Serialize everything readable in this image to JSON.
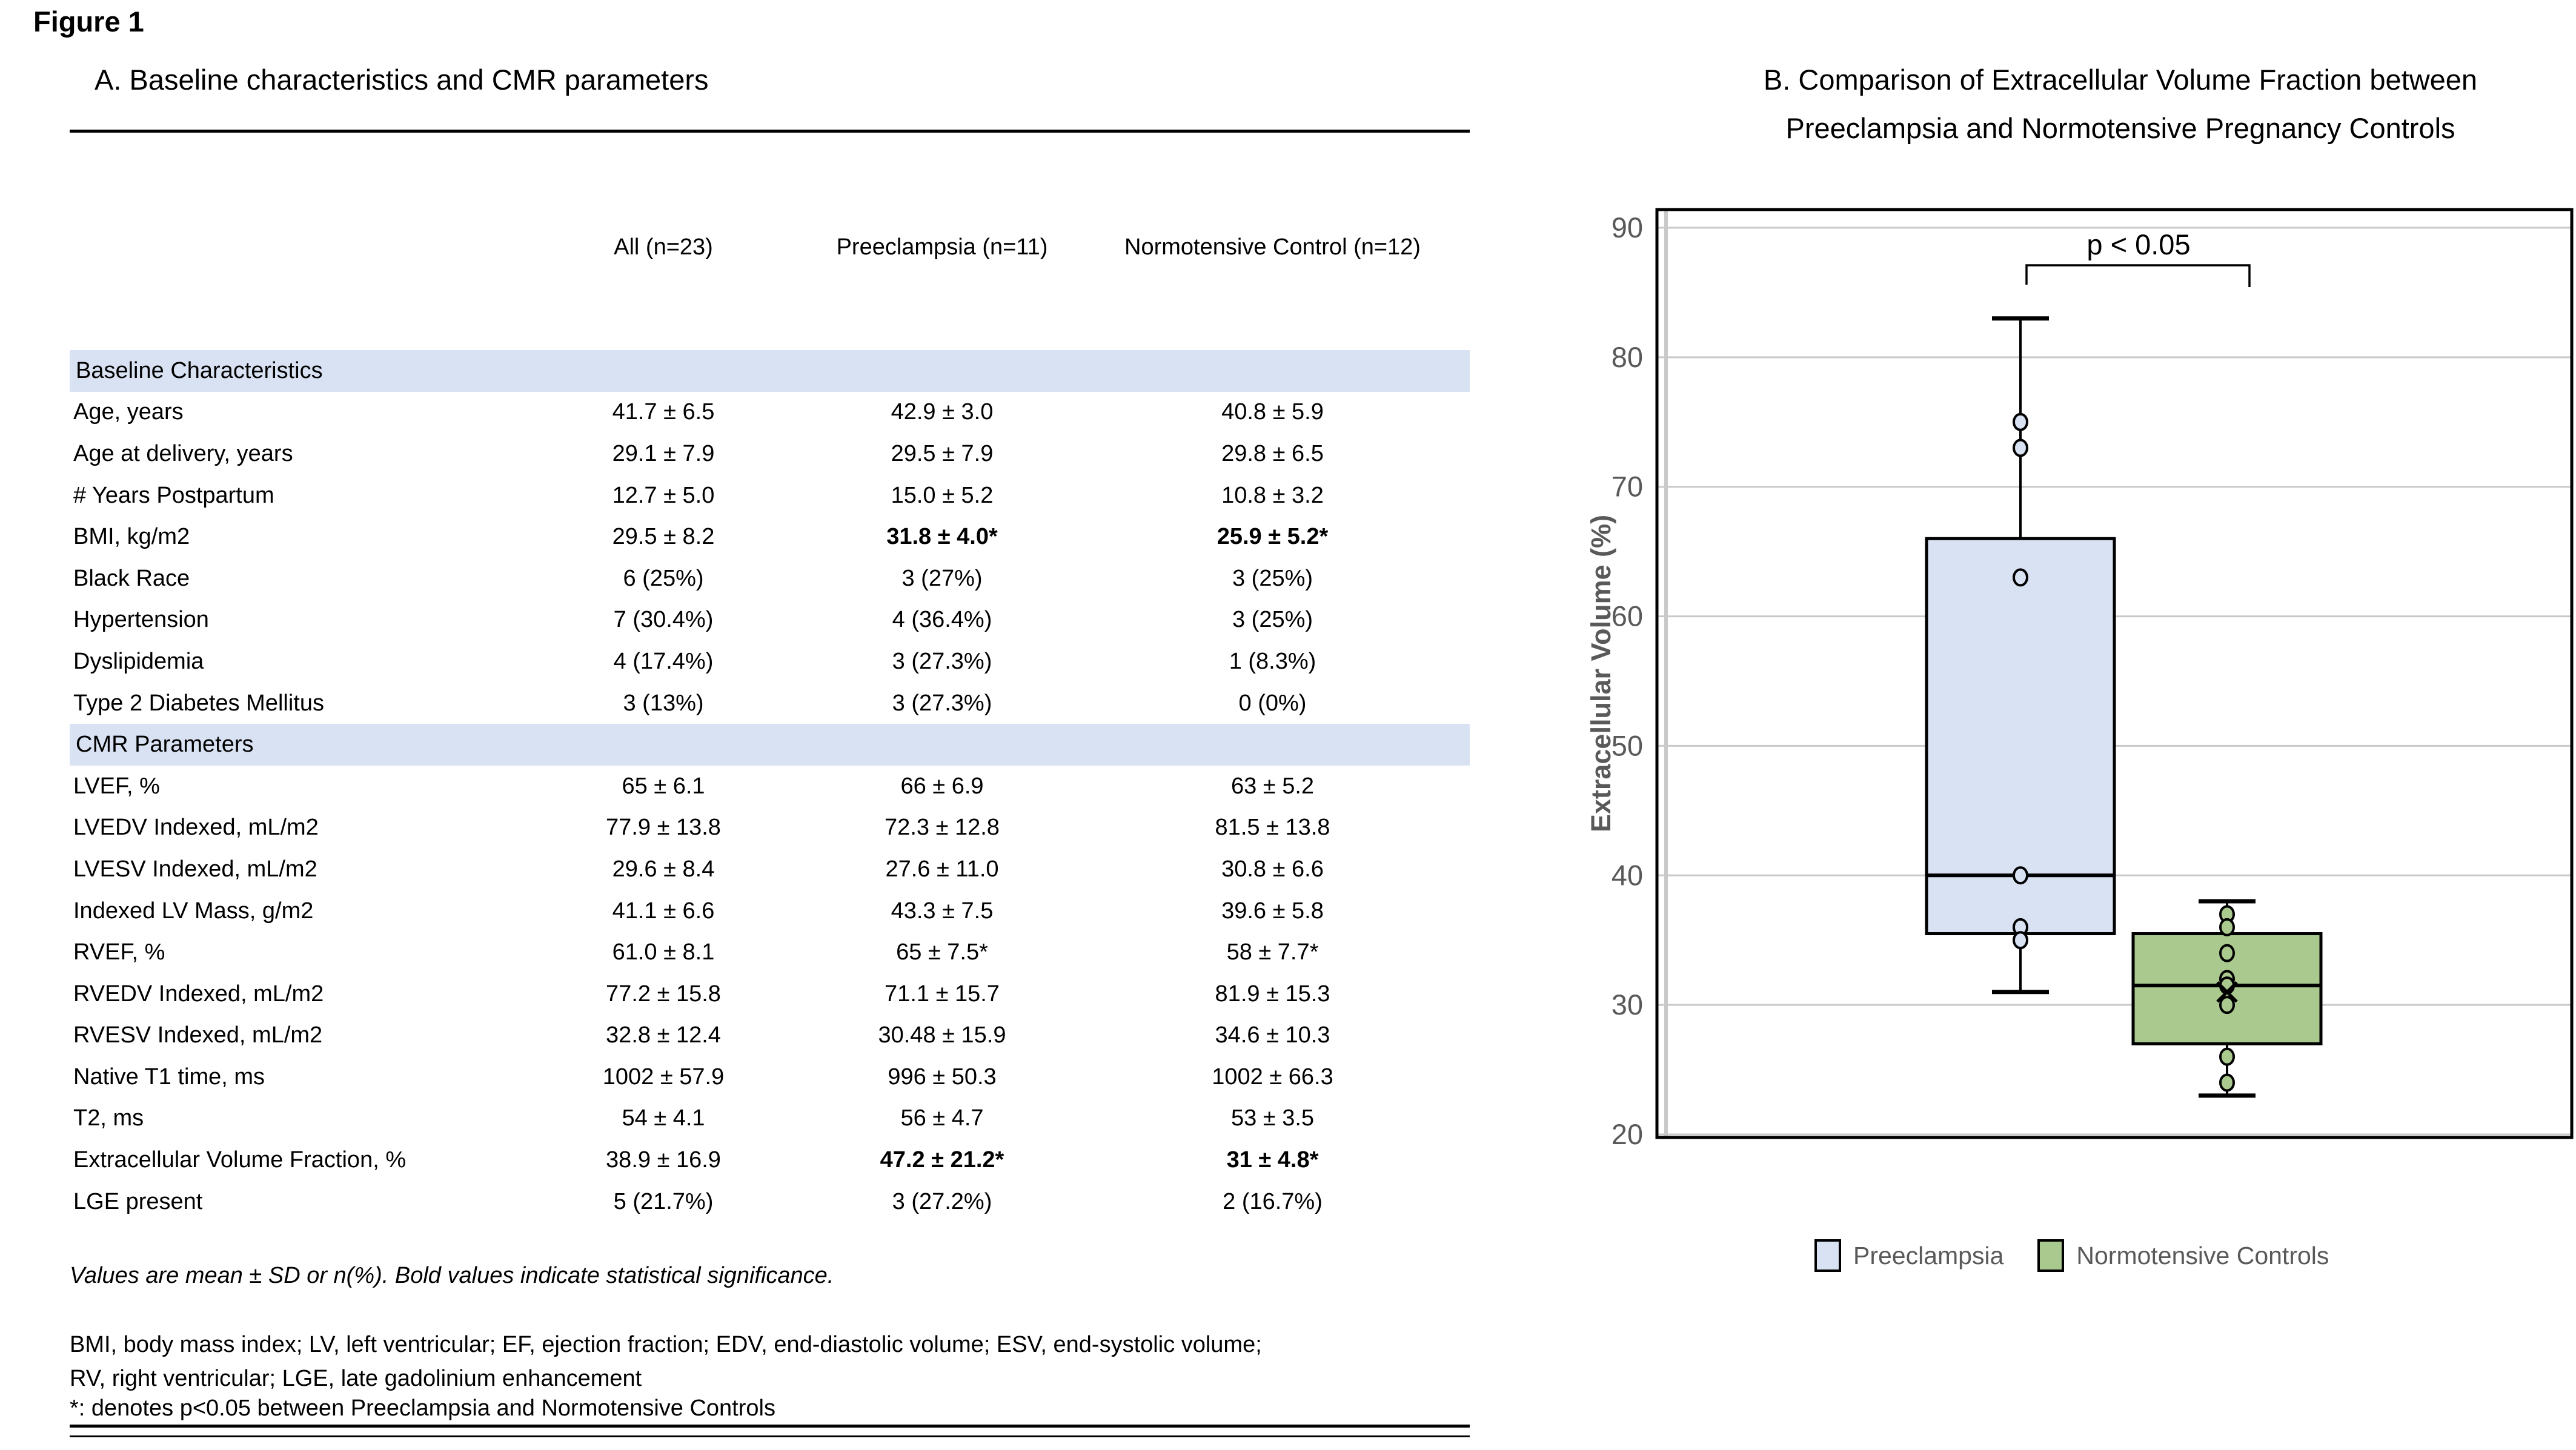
{
  "figure_label": "Figure 1",
  "panel_a": {
    "title": "A. Baseline characteristics and CMR parameters",
    "columns": [
      "",
      "All (n=23)",
      "Preeclampsia (n=11)",
      "Normotensive Control (n=12)"
    ],
    "rows": [
      {
        "section": true,
        "label": "Baseline Characteristics"
      },
      {
        "label": "Age, years",
        "values": [
          "41.7 ± 6.5",
          "42.9 ± 3.0",
          "40.8 ± 5.9"
        ],
        "bold": [
          false,
          false,
          false
        ]
      },
      {
        "label": "Age at delivery, years",
        "values": [
          "29.1 ± 7.9",
          "29.5 ± 7.9",
          "29.8 ± 6.5"
        ],
        "bold": [
          false,
          false,
          false
        ]
      },
      {
        "label": "# Years Postpartum",
        "values": [
          "12.7 ± 5.0",
          "15.0 ± 5.2",
          "10.8 ± 3.2"
        ],
        "bold": [
          false,
          false,
          false
        ]
      },
      {
        "label": "BMI, kg/m2",
        "values": [
          "29.5 ± 8.2",
          "31.8 ± 4.0*",
          "25.9 ± 5.2*"
        ],
        "bold": [
          false,
          true,
          true
        ]
      },
      {
        "label": "Black Race",
        "values": [
          "6 (25%)",
          "3 (27%)",
          "3 (25%)"
        ],
        "bold": [
          false,
          false,
          false
        ]
      },
      {
        "label": "Hypertension",
        "values": [
          "7 (30.4%)",
          "4 (36.4%)",
          "3 (25%)"
        ],
        "bold": [
          false,
          false,
          false
        ]
      },
      {
        "label": "Dyslipidemia",
        "values": [
          "4 (17.4%)",
          "3 (27.3%)",
          "1 (8.3%)"
        ],
        "bold": [
          false,
          false,
          false
        ]
      },
      {
        "label": "Type 2 Diabetes Mellitus",
        "values": [
          "3 (13%)",
          "3 (27.3%)",
          "0 (0%)"
        ],
        "bold": [
          false,
          false,
          false
        ]
      },
      {
        "section": true,
        "label": "CMR Parameters"
      },
      {
        "label": "LVEF, %",
        "values": [
          "65 ± 6.1",
          "66 ± 6.9",
          "63 ± 5.2"
        ],
        "bold": [
          false,
          false,
          false
        ]
      },
      {
        "label": "LVEDV Indexed, mL/m2",
        "values": [
          "77.9 ± 13.8",
          "72.3 ± 12.8",
          "81.5 ± 13.8"
        ],
        "bold": [
          false,
          false,
          false
        ]
      },
      {
        "label": "LVESV Indexed, mL/m2",
        "values": [
          "29.6 ± 8.4",
          "27.6 ± 11.0",
          "30.8 ± 6.6"
        ],
        "bold": [
          false,
          false,
          false
        ]
      },
      {
        "label": "Indexed LV Mass, g/m2",
        "values": [
          "41.1 ± 6.6",
          "43.3 ± 7.5",
          "39.6 ± 5.8"
        ],
        "bold": [
          false,
          false,
          false
        ]
      },
      {
        "label": "RVEF, %",
        "values": [
          "61.0 ± 8.1",
          "65 ± 7.5*",
          "58 ± 7.7*"
        ],
        "bold": [
          false,
          false,
          false
        ]
      },
      {
        "label": "RVEDV Indexed, mL/m2",
        "values": [
          "77.2 ± 15.8",
          "71.1 ± 15.7",
          "81.9 ± 15.3"
        ],
        "bold": [
          false,
          false,
          false
        ]
      },
      {
        "label": "RVESV Indexed, mL/m2",
        "values": [
          "32.8 ± 12.4",
          "30.48 ± 15.9",
          "34.6 ± 10.3"
        ],
        "bold": [
          false,
          false,
          false
        ]
      },
      {
        "label": "Native T1 time, ms",
        "values": [
          "1002 ± 57.9",
          "996 ± 50.3",
          "1002 ± 66.3"
        ],
        "bold": [
          false,
          false,
          false
        ]
      },
      {
        "label": "T2, ms",
        "values": [
          "54 ± 4.1",
          "56 ± 4.7",
          "53 ± 3.5"
        ],
        "bold": [
          false,
          false,
          false
        ]
      },
      {
        "label": "Extracellular Volume Fraction, %",
        "values": [
          "38.9 ± 16.9",
          "47.2 ± 21.2*",
          "31 ± 4.8*"
        ],
        "bold": [
          false,
          true,
          true
        ]
      },
      {
        "label": "LGE present",
        "values": [
          "5 (21.7%)",
          "3 (27.2%)",
          "2 (16.7%)"
        ],
        "bold": [
          false,
          false,
          false
        ]
      }
    ],
    "footnote_italic": "Values are mean ± SD or n(%). Bold values indicate statistical significance.",
    "footnote_abbrev_line1": "BMI, body mass index; LV, left ventricular; EF, ejection fraction; EDV, end-diastolic volume; ESV, end-systolic volume;",
    "footnote_abbrev_line2": "RV, right ventricular; LGE, late gadolinium enhancement",
    "footnote_star": "*: denotes p<0.05 between Preeclampsia and Normotensive Controls",
    "section_highlight_color": "#d9e2f3"
  },
  "panel_b": {
    "title_line1": "B. Comparison of Extracellular Volume Fraction between",
    "title_line2": "Preeclampsia and Normotensive Pregnancy Controls",
    "legend": [
      {
        "label": "Preeclampsia",
        "color": "#d9e2f3"
      },
      {
        "label": "Normotensive Controls",
        "color": "#a9c98e"
      }
    ]
  },
  "chart_data": {
    "type": "box",
    "title": "Comparison of Extracellular Volume Fraction between Preeclampsia and Normotensive Pregnancy Controls",
    "ylabel": "Extracellular Volume (%)",
    "ylim": [
      20,
      90
    ],
    "yticks": [
      20,
      30,
      40,
      50,
      60,
      70,
      80,
      90
    ],
    "grid": true,
    "legend_position": "bottom",
    "annotation": "p < 0.05",
    "categories": [
      "Preeclampsia",
      "Normotensive Controls"
    ],
    "series": [
      {
        "name": "Preeclampsia",
        "color": "#d9e2f3",
        "min": 31,
        "q1": 35.5,
        "median": 40,
        "q3": 66,
        "max": 83,
        "points": [
          75,
          73,
          63,
          40,
          36,
          35
        ]
      },
      {
        "name": "Normotensive Controls",
        "color": "#a9c98e",
        "min": 23,
        "q1": 27,
        "median": 31.5,
        "q3": 35.5,
        "max": 38,
        "mean": 31,
        "points": [
          37,
          36,
          34,
          32,
          31.5,
          30,
          26,
          24
        ]
      }
    ]
  },
  "chart_colors": {
    "gridline": "#c9c9c9",
    "axis_text": "#595959",
    "border": "#000000"
  }
}
